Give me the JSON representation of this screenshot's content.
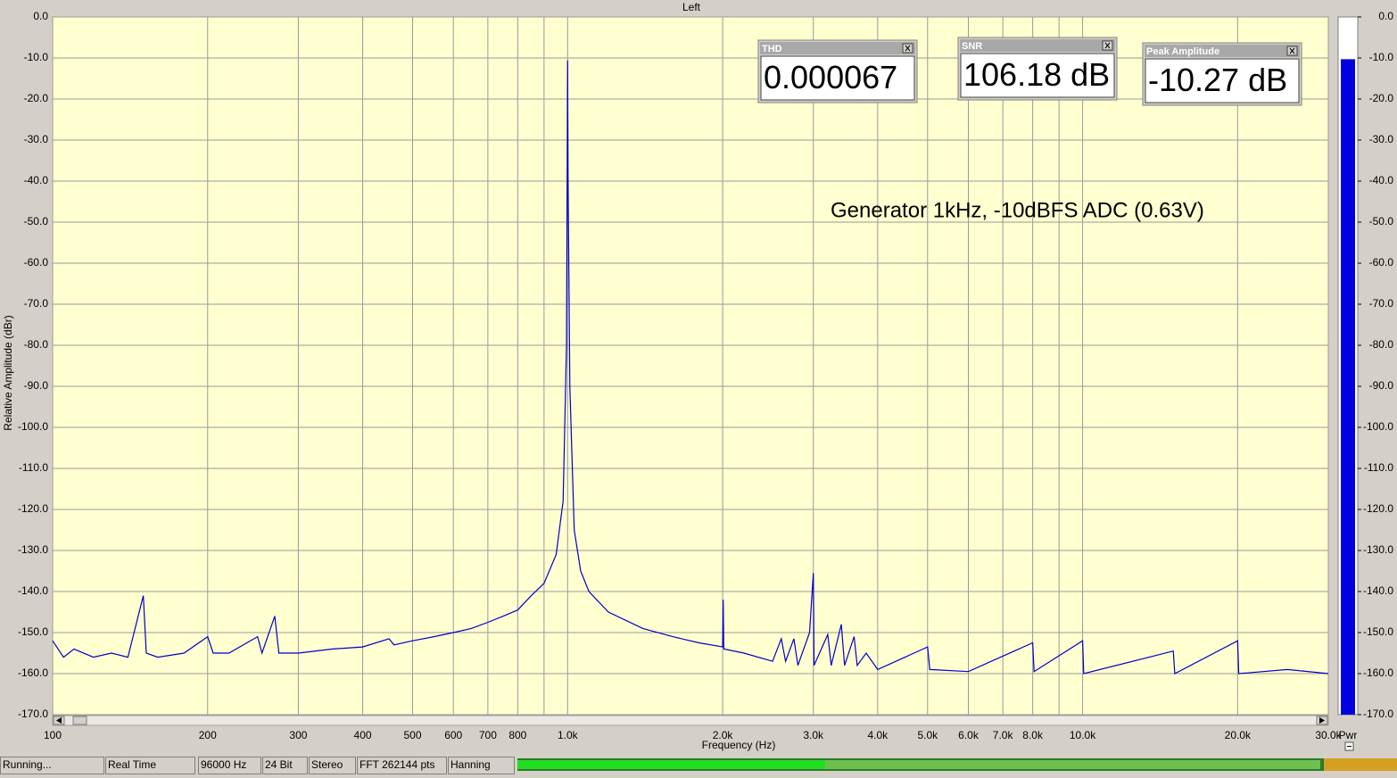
{
  "chart_data": {
    "type": "line",
    "title": "Left",
    "x_label": "Frequency (Hz)",
    "y_label": "Relative Amplitude (dBr)",
    "log_x": true,
    "grid": true,
    "xlim": [
      100,
      30000
    ],
    "ylim": [
      -170,
      0
    ],
    "xticks": [
      100,
      200,
      300,
      400,
      500,
      600,
      700,
      800,
      {
        "value": 1000,
        "label": "1.0k"
      },
      {
        "value": 2000,
        "label": "2.0k"
      },
      {
        "value": 3000,
        "label": "3.0k"
      },
      {
        "value": 4000,
        "label": "4.0k"
      },
      {
        "value": 5000,
        "label": "5.0k"
      },
      {
        "value": 6000,
        "label": "6.0k"
      },
      {
        "value": 7000,
        "label": "7.0k"
      },
      {
        "value": 8000,
        "label": "8.0k"
      },
      {
        "value": 10000,
        "label": "10.0k"
      },
      {
        "value": 20000,
        "label": "20.0k"
      },
      {
        "value": 30000,
        "label": "30.0k"
      }
    ],
    "minor_xticks": [
      900,
      9000
    ],
    "yticks": [
      {
        "value": 0,
        "label": "0.0"
      },
      {
        "value": -10,
        "label": "-10.0"
      },
      {
        "value": -20,
        "label": "-20.0"
      },
      {
        "value": -30,
        "label": "-30.0"
      },
      {
        "value": -40,
        "label": "-40.0"
      },
      {
        "value": -50,
        "label": "-50.0"
      },
      {
        "value": -60,
        "label": "-60.0"
      },
      {
        "value": -70,
        "label": "-70.0"
      },
      {
        "value": -80,
        "label": "-80.0"
      },
      {
        "value": -90,
        "label": "-90.0"
      },
      {
        "value": -100,
        "label": "-100.0"
      },
      {
        "value": -110,
        "label": "-110.0"
      },
      {
        "value": -120,
        "label": "-120.0"
      },
      {
        "value": -130,
        "label": "-130.0"
      },
      {
        "value": -140,
        "label": "-140.0"
      },
      {
        "value": -150,
        "label": "-150.0"
      },
      {
        "value": -160,
        "label": "-160.0"
      },
      {
        "value": -170,
        "label": "-170.0"
      }
    ],
    "annotation": "Generator 1kHz, -10dBFS ADC (0.63V)",
    "series": [
      {
        "color": "#0000c8",
        "x": [
          100,
          105,
          110,
          120,
          130,
          140,
          150,
          152,
          160,
          180,
          200,
          205,
          220,
          250,
          255,
          270,
          275,
          300,
          350,
          400,
          450,
          460,
          500,
          550,
          600,
          650,
          700,
          750,
          800,
          850,
          900,
          950,
          980,
          995,
          1000,
          1002,
          1010,
          1030,
          1060,
          1100,
          1200,
          1400,
          1600,
          1800,
          2000,
          2005,
          2010,
          2200,
          2500,
          2600,
          2650,
          2750,
          2800,
          2950,
          3000,
          3010,
          3200,
          3250,
          3400,
          3450,
          3600,
          3650,
          3800,
          4000,
          5000,
          5050,
          6000,
          8000,
          8050,
          10000,
          10050,
          15000,
          15100,
          20000,
          20100,
          25000,
          30000
        ],
        "values": [
          -152,
          -156,
          -154,
          -156,
          -155,
          -156,
          -141,
          -155,
          -156,
          -155,
          -151,
          -155,
          -155,
          -151,
          -155,
          -146,
          -155,
          -155,
          -154,
          -153.5,
          -151.5,
          -153,
          -152,
          -151,
          -150,
          -149,
          -147.5,
          -146,
          -144.5,
          -141,
          -138,
          -131,
          -118,
          -80,
          -10.6,
          -38.5,
          -90,
          -125,
          -135,
          -140,
          -145,
          -149,
          -151,
          -152.5,
          -153.5,
          -142,
          -154,
          -155,
          -157,
          -151.5,
          -157,
          -151.5,
          -158,
          -150,
          -135.5,
          -158,
          -150.5,
          -158,
          -148,
          -158,
          -151,
          -158,
          -155,
          -159,
          -153.5,
          -159,
          -159.5,
          -152.5,
          -159.5,
          -152,
          -160,
          -154.5,
          -160,
          -152,
          -160,
          -159,
          -160
        ]
      }
    ],
    "meter": {
      "label": "Pwr",
      "value": -10.3
    }
  },
  "readouts": [
    {
      "title": "THD",
      "value": "0.000067"
    },
    {
      "title": "SNR",
      "value": "106.18 dB"
    },
    {
      "title": "Peak Amplitude",
      "value": "-10.27 dB"
    }
  ],
  "status_bar": [
    "Running...",
    "Real Time",
    "96000 Hz",
    "24 Bit",
    "Stereo",
    "FFT 262144 pts",
    "Hanning"
  ]
}
